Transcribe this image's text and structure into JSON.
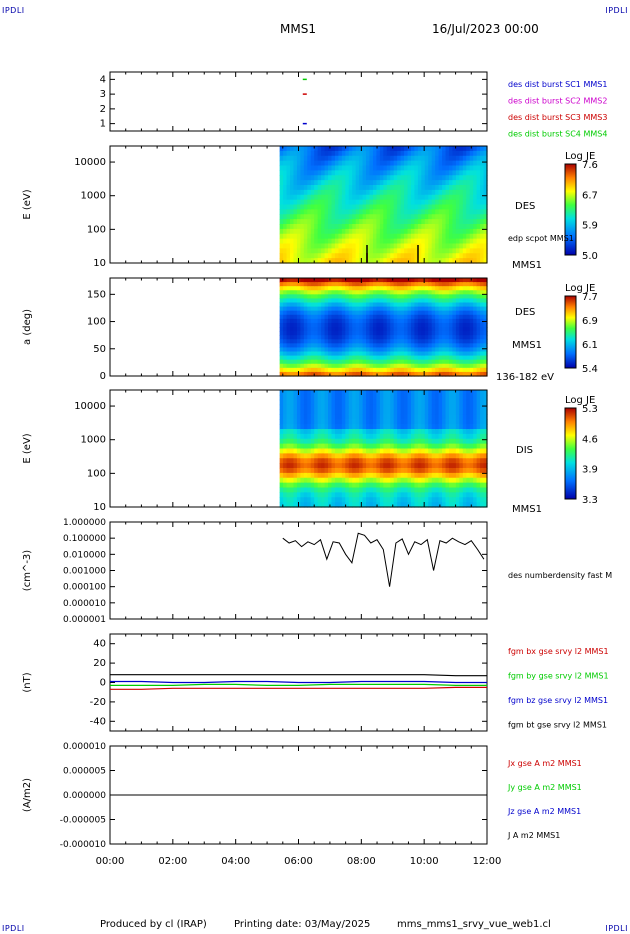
{
  "corners": {
    "tl": "IPDLI",
    "tr": "IPDLI",
    "bl": "IPDLI",
    "br": "IPDLI"
  },
  "header": {
    "mission": "MMS1",
    "date": "16/Jul/2023 00:00"
  },
  "footer": {
    "produced": "Produced by cl (IRAP)",
    "printing": "Printing date: 03/May/2025",
    "file": "mms_mms1_srvy_vue_web1.cl"
  },
  "colors": {
    "red": "#cc0000",
    "green": "#00cc00",
    "blue": "#0000cc",
    "magenta": "#cc00cc",
    "black": "#000000"
  },
  "chart_data": [
    {
      "type": "scatter",
      "id": "burst",
      "ylim": [
        0.5,
        4.5
      ],
      "yticks": [
        "1",
        "2",
        "3",
        "4"
      ],
      "series": [
        {
          "name": "des dist burst SC1 MMS1",
          "color": "#0000cc",
          "x": [
            6.2
          ],
          "y": [
            1
          ]
        },
        {
          "name": "des dist burst SC2 MMS2",
          "color": "#cc00cc",
          "x": [],
          "y": []
        },
        {
          "name": "des dist burst SC3 MMS3",
          "color": "#cc0000",
          "x": [
            6.2
          ],
          "y": [
            3
          ]
        },
        {
          "name": "des dist burst SC4 MMS4",
          "color": "#00cc00",
          "x": [
            6.2
          ],
          "y": [
            4
          ]
        }
      ]
    },
    {
      "type": "heatmap",
      "id": "des_e",
      "ylabel": "E (eV)",
      "yscale": "log",
      "ylim": [
        10,
        30000
      ],
      "yticks": [
        "10",
        "100",
        "1000",
        "10000"
      ],
      "data_start_hours": 5.4,
      "colorbar": {
        "title": "Log JE",
        "ticks": [
          "7.6",
          "6.7",
          "5.9",
          "5.0"
        ],
        "range": [
          5.0,
          7.6
        ]
      },
      "side_labels": [
        "DES",
        "edp scpot MMS1",
        "MMS1"
      ]
    },
    {
      "type": "heatmap",
      "id": "des_pa",
      "ylabel": "a (deg)",
      "ylim": [
        0,
        180
      ],
      "yticks": [
        "0",
        "50",
        "100",
        "150"
      ],
      "data_start_hours": 5.4,
      "colorbar": {
        "title": "Log JE",
        "ticks": [
          "7.7",
          "6.9",
          "6.1",
          "5.4"
        ],
        "range": [
          5.4,
          7.7
        ]
      },
      "side_labels": [
        "DES",
        "MMS1",
        "136-182 eV"
      ]
    },
    {
      "type": "heatmap",
      "id": "dis_e",
      "ylabel": "E (eV)",
      "yscale": "log",
      "ylim": [
        10,
        30000
      ],
      "yticks": [
        "10",
        "100",
        "1000",
        "10000"
      ],
      "data_start_hours": 5.4,
      "colorbar": {
        "title": "Log JE",
        "ticks": [
          "5.3",
          "4.6",
          "3.9",
          "3.3"
        ],
        "range": [
          3.3,
          5.3
        ]
      },
      "side_labels": [
        "DIS",
        "MMS1"
      ]
    },
    {
      "type": "line",
      "id": "density",
      "ylabel": "(cm^-3)",
      "yscale": "log",
      "ylim": [
        1e-06,
        1.0
      ],
      "yticks": [
        "0.000001",
        "0.000010",
        "0.000100",
        "0.001000",
        "0.010000",
        "0.100000",
        "1.000000"
      ],
      "series": [
        {
          "name": "des numberdensity fast M",
          "color": "#000000",
          "x": [
            5.5,
            5.7,
            5.9,
            6.1,
            6.3,
            6.5,
            6.7,
            6.9,
            7.1,
            7.3,
            7.5,
            7.7,
            7.9,
            8.1,
            8.3,
            8.5,
            8.7,
            8.9,
            9.1,
            9.3,
            9.5,
            9.7,
            9.9,
            10.1,
            10.3,
            10.5,
            10.7,
            10.9,
            11.1,
            11.3,
            11.5,
            11.7,
            11.9
          ],
          "y": [
            0.1,
            0.05,
            0.07,
            0.03,
            0.06,
            0.04,
            0.08,
            0.005,
            0.06,
            0.05,
            0.01,
            0.003,
            0.2,
            0.15,
            0.05,
            0.08,
            0.02,
            0.0001,
            0.05,
            0.09,
            0.01,
            0.06,
            0.04,
            0.08,
            0.001,
            0.07,
            0.05,
            0.1,
            0.06,
            0.04,
            0.07,
            0.02,
            0.005
          ]
        }
      ]
    },
    {
      "type": "line",
      "id": "fgm",
      "ylabel": "(nT)",
      "ylim": [
        -50,
        50
      ],
      "yticks": [
        "-40",
        "-20",
        "0",
        "20",
        "40"
      ],
      "series": [
        {
          "name": "fgm bx gse srvy l2 MMS1",
          "color": "#cc0000",
          "x": [
            0,
            1,
            2,
            3,
            4,
            5,
            6,
            7,
            8,
            9,
            10,
            11,
            12
          ],
          "y": [
            -7,
            -7,
            -6,
            -6,
            -6,
            -6,
            -6,
            -6,
            -6,
            -6,
            -6,
            -5,
            -5
          ]
        },
        {
          "name": "fgm by gse srvy l2 MMS1",
          "color": "#00cc00",
          "x": [
            0,
            1,
            2,
            3,
            4,
            5,
            6,
            7,
            8,
            9,
            10,
            11,
            12
          ],
          "y": [
            -3,
            -3,
            -3,
            -2,
            -2,
            -3,
            -3,
            -2,
            -2,
            -2,
            -2,
            -3,
            -3
          ]
        },
        {
          "name": "fgm bz gse srvy l2 MMS1",
          "color": "#0000cc",
          "x": [
            0,
            1,
            2,
            3,
            4,
            5,
            6,
            7,
            8,
            9,
            10,
            11,
            12
          ],
          "y": [
            1,
            1,
            0,
            0,
            1,
            1,
            0,
            0,
            1,
            1,
            1,
            0,
            0
          ]
        },
        {
          "name": "fgm bt gse srvy l2 MMS1",
          "color": "#000000",
          "x": [
            0,
            1,
            2,
            3,
            4,
            5,
            6,
            7,
            8,
            9,
            10,
            11,
            12
          ],
          "y": [
            8,
            8,
            8,
            8,
            8,
            8,
            8,
            8,
            8,
            8,
            8,
            7,
            7
          ]
        }
      ]
    },
    {
      "type": "line",
      "id": "current",
      "ylabel": "(A/m2)",
      "ylim": [
        -1e-05,
        1e-05
      ],
      "yticks": [
        "-0.000010",
        "-0.000005",
        "0.000000",
        "0.000005",
        "0.000010"
      ],
      "series": [
        {
          "name": "Jx gse A m2 MMS1",
          "color": "#cc0000",
          "x": [],
          "y": []
        },
        {
          "name": "Jy gse A m2 MMS1",
          "color": "#00cc00",
          "x": [],
          "y": []
        },
        {
          "name": "Jz gse A m2 MMS1",
          "color": "#0000cc",
          "x": [],
          "y": []
        },
        {
          "name": "J A m2 MMS1",
          "color": "#000000",
          "x": [],
          "y": []
        }
      ]
    }
  ],
  "xaxis": {
    "ticks": [
      "00:00",
      "02:00",
      "04:00",
      "06:00",
      "08:00",
      "10:00",
      "12:00"
    ],
    "range_hours": [
      0,
      12
    ]
  }
}
